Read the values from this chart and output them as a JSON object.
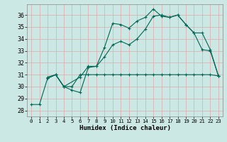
{
  "xlabel": "Humidex (Indice chaleur)",
  "bg_color": "#cce8e4",
  "grid_color": "#ddaaaa",
  "line_color": "#006655",
  "xlim": [
    -0.5,
    23.5
  ],
  "ylim": [
    27.5,
    36.9
  ],
  "yticks": [
    28,
    29,
    30,
    31,
    32,
    33,
    34,
    35,
    36
  ],
  "xticks": [
    0,
    1,
    2,
    3,
    4,
    5,
    6,
    7,
    8,
    9,
    10,
    11,
    12,
    13,
    14,
    15,
    16,
    17,
    18,
    19,
    20,
    21,
    22,
    23
  ],
  "line1_x": [
    0,
    1,
    2,
    3,
    4,
    5,
    6,
    7,
    8,
    9,
    10,
    11,
    12,
    13,
    14,
    15,
    16,
    17,
    18,
    19,
    20,
    21,
    22,
    23
  ],
  "line1_y": [
    28.5,
    28.5,
    30.7,
    31.0,
    30.0,
    29.7,
    29.5,
    31.6,
    31.7,
    33.3,
    35.3,
    35.2,
    34.9,
    35.5,
    35.8,
    36.5,
    35.9,
    35.8,
    36.0,
    35.2,
    34.5,
    33.1,
    33.0,
    30.9
  ],
  "line2_x": [
    2,
    3,
    4,
    6,
    7,
    8,
    9,
    10,
    11,
    12,
    13,
    14,
    15,
    16,
    17,
    18,
    19,
    20,
    21,
    22,
    23
  ],
  "line2_y": [
    30.7,
    31.0,
    30.0,
    30.8,
    31.7,
    31.7,
    32.5,
    33.5,
    33.8,
    33.5,
    34.0,
    34.8,
    35.9,
    36.0,
    35.8,
    36.0,
    35.2,
    34.5,
    34.5,
    33.1,
    30.9
  ],
  "line3_x": [
    2,
    3,
    4,
    5,
    6,
    7,
    8,
    9,
    10,
    11,
    12,
    13,
    14,
    15,
    16,
    17,
    18,
    19,
    20,
    21,
    22,
    23
  ],
  "line3_y": [
    30.8,
    31.0,
    30.0,
    30.0,
    31.0,
    31.0,
    31.0,
    31.0,
    31.0,
    31.0,
    31.0,
    31.0,
    31.0,
    31.0,
    31.0,
    31.0,
    31.0,
    31.0,
    31.0,
    31.0,
    31.0,
    30.9
  ]
}
